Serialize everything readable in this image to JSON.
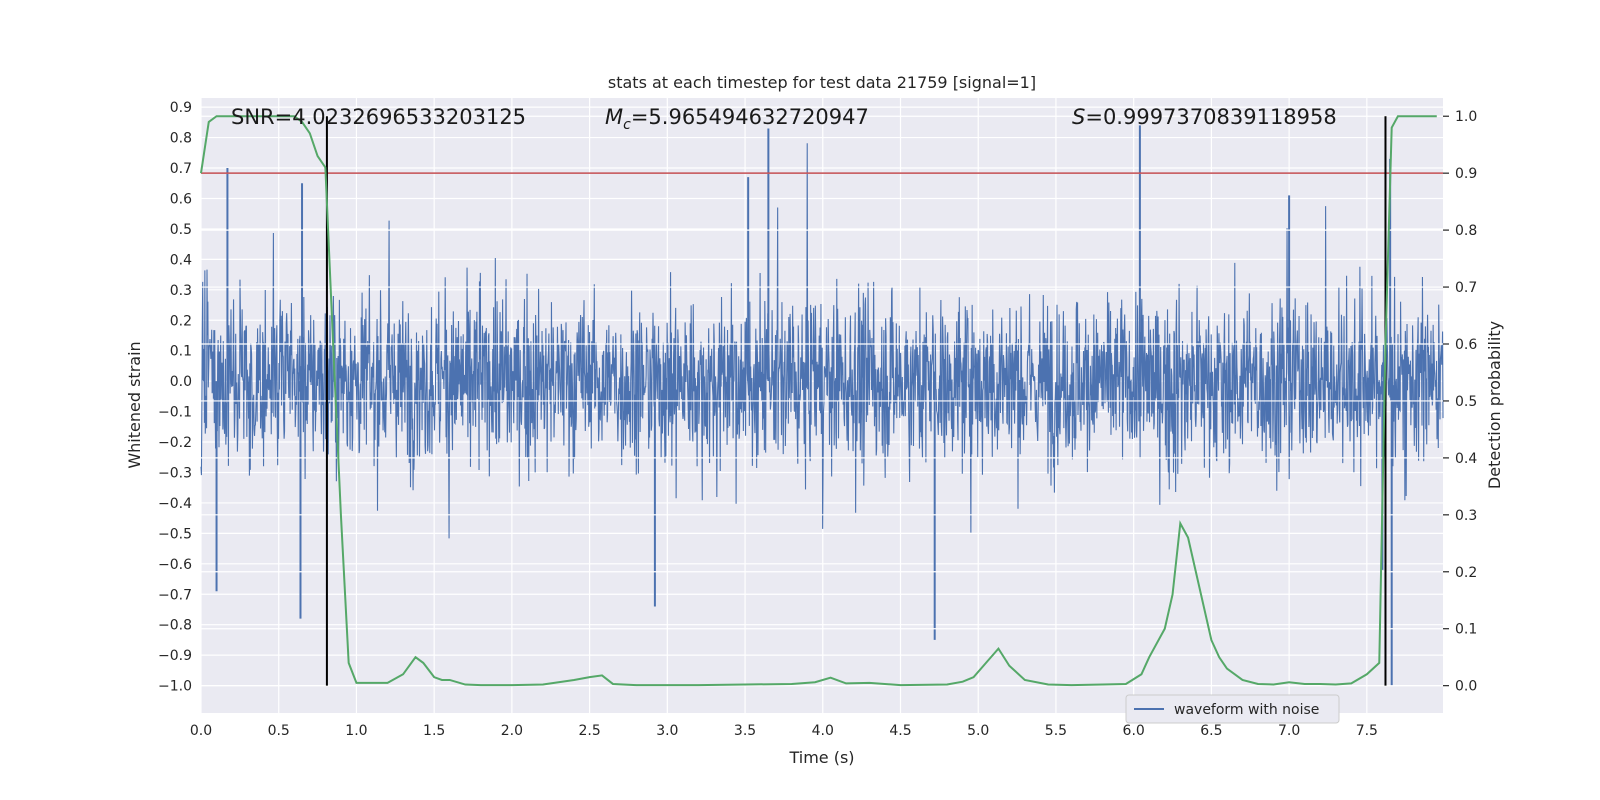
{
  "chart_data": {
    "type": "line",
    "title": "stats at each timestep for test data 21759 [signal=1]",
    "xlabel": "Time (s)",
    "ylabel": "Whitened strain",
    "y2label": "Detection probability",
    "xlim": [
      0.0,
      7.99
    ],
    "ylim": [
      -1.09,
      0.93
    ],
    "y2lim": [
      -0.048,
      1.032
    ],
    "x_ticks": [
      0.0,
      0.5,
      1.0,
      1.5,
      2.0,
      2.5,
      3.0,
      3.5,
      4.0,
      4.5,
      5.0,
      5.5,
      6.0,
      6.5,
      7.0,
      7.5
    ],
    "x_tick_labels": [
      "0.0",
      "0.5",
      "1.0",
      "1.5",
      "2.0",
      "2.5",
      "3.0",
      "3.5",
      "4.0",
      "4.5",
      "5.0",
      "5.5",
      "6.0",
      "6.5",
      "7.0",
      "7.5"
    ],
    "y_ticks": [
      -1.0,
      -0.9,
      -0.8,
      -0.7,
      -0.6,
      -0.5,
      -0.4,
      -0.3,
      -0.2,
      -0.1,
      0.0,
      0.1,
      0.2,
      0.3,
      0.4,
      0.5,
      0.6,
      0.7,
      0.8,
      0.9
    ],
    "y_tick_labels": [
      "−1.0",
      "−0.9",
      "−0.8",
      "−0.7",
      "−0.6",
      "−0.5",
      "−0.4",
      "−0.3",
      "−0.2",
      "−0.1",
      "0.0",
      "0.1",
      "0.2",
      "0.3",
      "0.4",
      "0.5",
      "0.6",
      "0.7",
      "0.8",
      "0.9"
    ],
    "y2_ticks": [
      0.0,
      0.1,
      0.2,
      0.3,
      0.4,
      0.5,
      0.6,
      0.7,
      0.8,
      0.9,
      1.0
    ],
    "y2_tick_labels": [
      "0.0",
      "0.1",
      "0.2",
      "0.3",
      "0.4",
      "0.5",
      "0.6",
      "0.7",
      "0.8",
      "0.9",
      "1.0"
    ],
    "annotations": {
      "snr": "SNR=4.0232696533203125",
      "mc_symbol": "M",
      "mc_sub": "c",
      "mc_value": "=5.965494632720947",
      "s_symbol": "S",
      "s_value": "=0.9997370839118958"
    },
    "threshold_probability": 0.9,
    "vertical_markers_s": [
      0.81,
      7.62
    ],
    "legend": {
      "label": "waveform with noise",
      "location": "lower right"
    },
    "series": [
      {
        "name": "waveform with noise",
        "axis": "left",
        "color": "#4c72b0",
        "note": "noise-like strain; envelope typically within ±0.3 with peaks near 0.83 and dips near -1.0",
        "peaks_positive": [
          [
            0.17,
            0.7
          ],
          [
            0.65,
            0.65
          ],
          [
            3.65,
            0.83
          ],
          [
            3.52,
            0.67
          ],
          [
            6.04,
            0.84
          ],
          [
            7.0,
            0.61
          ],
          [
            7.65,
            0.73
          ]
        ],
        "peaks_negative": [
          [
            0.64,
            -0.78
          ],
          [
            2.92,
            -0.74
          ],
          [
            4.72,
            -0.85
          ],
          [
            7.66,
            -1.0
          ],
          [
            7.6,
            -0.62
          ],
          [
            0.1,
            -0.69
          ]
        ]
      },
      {
        "name": "Detection probability",
        "axis": "right",
        "color": "#55a868",
        "x": [
          0.0,
          0.05,
          0.1,
          0.15,
          0.2,
          0.3,
          0.4,
          0.5,
          0.6,
          0.65,
          0.7,
          0.75,
          0.8,
          0.85,
          0.9,
          0.95,
          1.0,
          1.1,
          1.2,
          1.3,
          1.38,
          1.43,
          1.5,
          1.55,
          1.6,
          1.7,
          1.8,
          2.0,
          2.2,
          2.4,
          2.5,
          2.58,
          2.65,
          2.8,
          3.0,
          3.2,
          3.5,
          3.8,
          3.95,
          4.05,
          4.15,
          4.3,
          4.5,
          4.8,
          4.9,
          4.97,
          5.05,
          5.13,
          5.2,
          5.3,
          5.45,
          5.6,
          5.8,
          5.95,
          6.05,
          6.1,
          6.2,
          6.25,
          6.3,
          6.35,
          6.4,
          6.5,
          6.55,
          6.6,
          6.7,
          6.8,
          6.9,
          7.0,
          7.1,
          7.2,
          7.3,
          7.4,
          7.5,
          7.58,
          7.62,
          7.66,
          7.7,
          7.8,
          7.95
        ],
        "values": [
          0.9,
          0.99,
          1.0,
          1.0,
          1.0,
          1.0,
          1.0,
          1.0,
          1.0,
          0.99,
          0.97,
          0.93,
          0.91,
          0.6,
          0.3,
          0.04,
          0.005,
          0.005,
          0.005,
          0.02,
          0.05,
          0.04,
          0.015,
          0.01,
          0.01,
          0.002,
          0.001,
          0.001,
          0.002,
          0.01,
          0.015,
          0.018,
          0.003,
          0.001,
          0.001,
          0.001,
          0.002,
          0.003,
          0.006,
          0.014,
          0.004,
          0.005,
          0.001,
          0.002,
          0.007,
          0.015,
          0.04,
          0.065,
          0.035,
          0.01,
          0.002,
          0.001,
          0.002,
          0.003,
          0.02,
          0.05,
          0.1,
          0.16,
          0.285,
          0.26,
          0.2,
          0.08,
          0.05,
          0.03,
          0.01,
          0.003,
          0.002,
          0.006,
          0.003,
          0.003,
          0.002,
          0.004,
          0.02,
          0.04,
          0.6,
          0.98,
          1.0,
          1.0,
          1.0
        ]
      }
    ]
  }
}
